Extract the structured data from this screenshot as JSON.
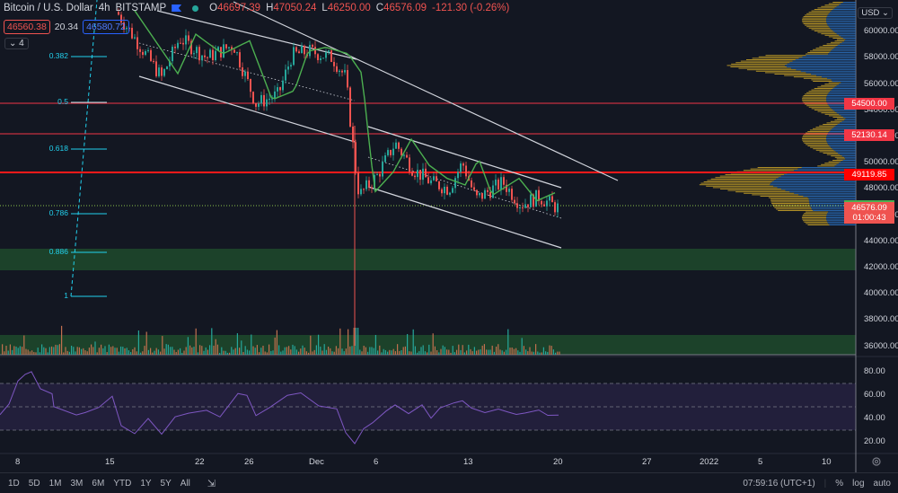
{
  "header": {
    "symbol_title": "Bitcoin / U.S. Dollar",
    "interval": "4h",
    "exchange": "BITSTAMP",
    "ohlc": {
      "o_key": "O",
      "o_val": "46697.39",
      "h_key": "H",
      "h_val": "47050.24",
      "l_key": "L",
      "l_val": "46250.00",
      "c_key": "C",
      "c_val": "46576.09",
      "change": "-121.30 (-0.26%)"
    },
    "sell_price": "46560.38",
    "spread": "20.34",
    "buy_price": "46580.72",
    "collapsed_indicators": "4"
  },
  "price_axis": {
    "currency": "USD",
    "ticks": [
      "62000.00",
      "60000.00",
      "58000.00",
      "56000.00",
      "54000.00",
      "52000.00",
      "50000.00",
      "48000.00",
      "46000.00",
      "44000.00",
      "42000.00",
      "40000.00",
      "38000.00",
      "36000.00"
    ]
  },
  "price_labels": [
    {
      "value": "54500.00",
      "color": "#f23645",
      "text_color": "#ffffff"
    },
    {
      "value": "52130.14",
      "color": "#f23645",
      "text_color": "#ffffff"
    },
    {
      "value": "49119.85",
      "color": "#ff0000",
      "text_color": "#ffffff"
    },
    {
      "value": "46700.00",
      "color": "#4caf50",
      "text_color": "#ffffff"
    },
    {
      "value": "46576.09",
      "countdown": "01:00:43",
      "color": "#ef5350",
      "text_color": "#ffffff"
    }
  ],
  "rsi_axis": {
    "ticks": [
      "80.00",
      "60.00",
      "40.00",
      "20.00"
    ]
  },
  "time_axis": {
    "ticks": [
      "8",
      "15",
      "22",
      "26",
      "Dec",
      "6",
      "13",
      "20",
      "27",
      "2022",
      "5",
      "10"
    ]
  },
  "fib_levels": [
    {
      "label": "0.382"
    },
    {
      "label": "0.5"
    },
    {
      "label": "0.618"
    },
    {
      "label": "0.786"
    },
    {
      "label": "0.886"
    },
    {
      "label": "1"
    }
  ],
  "bottom_bar": {
    "ranges": [
      "1D",
      "5D",
      "1M",
      "3M",
      "6M",
      "YTD",
      "1Y",
      "5Y",
      "All"
    ],
    "clock": "07:59:16 (UTC+1)",
    "percent": "%",
    "log": "log",
    "auto": "auto"
  },
  "colors": {
    "background": "#131722",
    "up": "#26a69a",
    "down": "#ef5350",
    "ma": "#4caf50",
    "rsi": "#7e57c2",
    "fib": "#22d1ee",
    "zone": "#1e4d2b",
    "vp_up": "#2a6ab5",
    "vp_down": "#c9a227"
  },
  "chart_data": {
    "type": "candlestick",
    "title": "Bitcoin / U.S. Dollar · 4h · BITSTAMP",
    "xlabel": "",
    "ylabel": "USD",
    "ylim": [
      35000,
      62500
    ],
    "x": [
      "Nov 8",
      "Nov 15",
      "Nov 22",
      "Nov 26",
      "Dec 1",
      "Dec 6",
      "Dec 13",
      "Dec 20"
    ],
    "series": [
      {
        "name": "Close (approx)",
        "values": [
          66500,
          64000,
          57000,
          58500,
          57000,
          49000,
          48000,
          46576
        ]
      },
      {
        "name": "MA (green)",
        "values": [
          66000,
          64500,
          58500,
          57500,
          57200,
          49500,
          48300,
          47300
        ]
      }
    ],
    "horizontal_levels": [
      54500.0,
      52130.14,
      49119.85,
      46700.0
    ],
    "support_zone": [
      41800,
      43400
    ],
    "last_price": 46576.09,
    "rsi": {
      "range": [
        0,
        100
      ],
      "bands": [
        30,
        50,
        70
      ],
      "last": 44
    },
    "annotations": [
      "Descending channel",
      "Fibonacci retracement 0.382-1",
      "Volume profile (right)"
    ],
    "grid": false,
    "legend_position": "top-left"
  }
}
